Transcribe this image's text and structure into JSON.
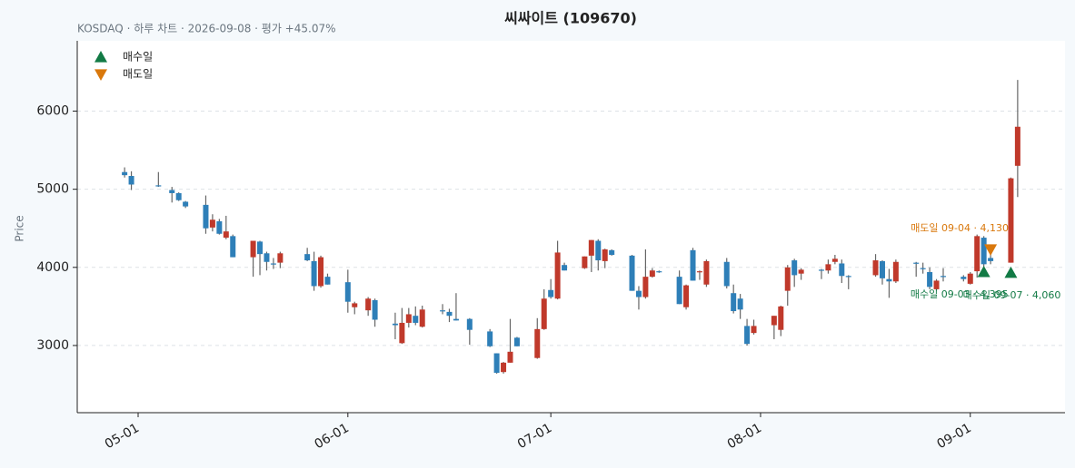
{
  "chart_data": {
    "type": "candlestick",
    "title": "씨싸이트 (109670)",
    "subtitle": "KOSDAQ · 하루 차트 · 2026-09-08 · 평가 +45.07%",
    "y_label": "Price",
    "up_color": "#c0392b",
    "down_color": "#2e7fb8",
    "x": [
      "2026-04-29",
      "2026-04-30",
      "2026-05-04",
      "2026-05-06",
      "2026-05-07",
      "2026-05-08",
      "2026-05-11",
      "2026-05-12",
      "2026-05-13",
      "2026-05-14",
      "2026-05-15",
      "2026-05-18",
      "2026-05-19",
      "2026-05-20",
      "2026-05-21",
      "2026-05-22",
      "2026-05-26",
      "2026-05-27",
      "2026-05-28",
      "2026-05-29",
      "2026-06-01",
      "2026-06-02",
      "2026-06-04",
      "2026-06-05",
      "2026-06-08",
      "2026-06-09",
      "2026-06-10",
      "2026-06-11",
      "2026-06-12",
      "2026-06-15",
      "2026-06-16",
      "2026-06-17",
      "2026-06-19",
      "2026-06-22",
      "2026-06-23",
      "2026-06-24",
      "2026-06-25",
      "2026-06-26",
      "2026-06-29",
      "2026-06-30",
      "2026-07-01",
      "2026-07-02",
      "2026-07-03",
      "2026-07-06",
      "2026-07-07",
      "2026-07-08",
      "2026-07-09",
      "2026-07-10",
      "2026-07-13",
      "2026-07-14",
      "2026-07-15",
      "2026-07-16",
      "2026-07-17",
      "2026-07-20",
      "2026-07-21",
      "2026-07-22",
      "2026-07-23",
      "2026-07-24",
      "2026-07-27",
      "2026-07-28",
      "2026-07-29",
      "2026-07-30",
      "2026-07-31",
      "2026-08-03",
      "2026-08-04",
      "2026-08-05",
      "2026-08-06",
      "2026-08-07",
      "2026-08-10",
      "2026-08-11",
      "2026-08-12",
      "2026-08-13",
      "2026-08-14",
      "2026-08-18",
      "2026-08-19",
      "2026-08-20",
      "2026-08-21",
      "2026-08-24",
      "2026-08-25",
      "2026-08-26",
      "2026-08-27",
      "2026-08-28",
      "2026-08-31",
      "2026-09-01",
      "2026-09-02",
      "2026-09-03",
      "2026-09-04",
      "2026-09-07",
      "2026-09-08"
    ],
    "open": [
      5220,
      5170,
      5050,
      4990,
      4950,
      4840,
      4800,
      4510,
      4590,
      4380,
      4400,
      4130,
      4330,
      4180,
      4050,
      4060,
      4170,
      4080,
      3760,
      3880,
      3810,
      3490,
      3450,
      3580,
      3280,
      3030,
      3290,
      3380,
      3240,
      3450,
      3430,
      3340,
      3340,
      3180,
      2900,
      2660,
      2780,
      3100,
      2840,
      3210,
      3710,
      3600,
      4030,
      3990,
      4150,
      4340,
      4080,
      4220,
      4150,
      3700,
      3620,
      3880,
      3950,
      3880,
      3490,
      4220,
      3940,
      3780,
      4070,
      3670,
      3600,
      3250,
      3160,
      3260,
      3200,
      3700,
      4090,
      3920,
      3970,
      3960,
      4070,
      4050,
      3890,
      3900,
      4080,
      3850,
      3820,
      4060,
      3990,
      3940,
      3720,
      3890,
      3880,
      3790,
      3950,
      4380,
      4120,
      4060,
      5300
    ],
    "high": [
      5280,
      5230,
      5220,
      5030,
      4960,
      4850,
      4920,
      4680,
      4620,
      4660,
      4420,
      4340,
      4340,
      4200,
      4120,
      4200,
      4250,
      4200,
      4150,
      3920,
      3970,
      3560,
      3620,
      3600,
      3420,
      3480,
      3480,
      3500,
      3510,
      3530,
      3470,
      3670,
      3350,
      3210,
      2900,
      2790,
      3340,
      3110,
      3350,
      3720,
      3850,
      4340,
      4060,
      4140,
      4350,
      4360,
      4240,
      4230,
      4160,
      3760,
      4230,
      3990,
      3960,
      3960,
      3780,
      4250,
      3960,
      4100,
      4120,
      3780,
      3660,
      3340,
      3330,
      3380,
      3510,
      4030,
      4110,
      3990,
      3980,
      4100,
      4160,
      4100,
      3900,
      4170,
      4090,
      3980,
      4100,
      4070,
      4060,
      4000,
      3850,
      3990,
      3900,
      3940,
      4420,
      4400,
      4210,
      5150,
      6400
    ],
    "low": [
      5150,
      4990,
      5030,
      4830,
      4850,
      4760,
      4430,
      4460,
      4420,
      4360,
      4130,
      3880,
      3900,
      3960,
      3980,
      3990,
      4080,
      3700,
      3740,
      3780,
      3420,
      3400,
      3380,
      3240,
      3080,
      3020,
      3230,
      3260,
      3230,
      3400,
      3300,
      3320,
      3010,
      2980,
      2640,
      2640,
      2780,
      2990,
      2830,
      3200,
      3600,
      3590,
      3960,
      3980,
      3940,
      3960,
      3990,
      4150,
      3700,
      3460,
      3600,
      3870,
      3930,
      3530,
      3460,
      3830,
      3840,
      3750,
      3730,
      3410,
      3340,
      3000,
      3140,
      3080,
      3120,
      3510,
      3750,
      3840,
      3850,
      3920,
      4040,
      3800,
      3720,
      3880,
      3780,
      3610,
      3800,
      3880,
      3920,
      3720,
      3700,
      3820,
      3820,
      3780,
      3870,
      3970,
      4040,
      4060,
      4900
    ],
    "close": [
      5180,
      5060,
      5040,
      4950,
      4860,
      4780,
      4500,
      4610,
      4430,
      4460,
      4130,
      4340,
      4170,
      4070,
      4040,
      4180,
      4090,
      3760,
      4130,
      3780,
      3560,
      3540,
      3600,
      3330,
      3260,
      3290,
      3400,
      3290,
      3460,
      3440,
      3380,
      3320,
      3200,
      2990,
      2650,
      2780,
      2920,
      2990,
      3210,
      3600,
      3620,
      4190,
      3960,
      4140,
      4350,
      4090,
      4230,
      4160,
      3700,
      3620,
      3880,
      3960,
      3940,
      3530,
      3770,
      3830,
      3950,
      4080,
      3760,
      3440,
      3460,
      3020,
      3250,
      3380,
      3500,
      4000,
      3900,
      3970,
      3960,
      4040,
      4110,
      3890,
      3880,
      4090,
      3860,
      3820,
      4070,
      4050,
      3980,
      3750,
      3830,
      3880,
      3850,
      3920,
      4400,
      4040,
      4080,
      5140,
      5800
    ],
    "markers": [
      {
        "name": "매수일",
        "color": "#127a45",
        "marker": "^",
        "x": [
          "2026-09-03",
          "2026-09-07"
        ],
        "y": [
          3940,
          3930
        ],
        "labels": [
          "매수일 09-03 · 4,395",
          "매수일 09-07 · 4,060"
        ]
      },
      {
        "name": "매도일",
        "color": "#d9780c",
        "marker": "v",
        "x": [
          "2026-09-04"
        ],
        "y": [
          4230
        ],
        "labels": [
          "매도일 09-04 · 4,130"
        ]
      }
    ],
    "xlim": [
      "2026-04-22",
      "2026-09-15"
    ],
    "xticks": [
      {
        "value": "2026-05-01",
        "label": "05-01"
      },
      {
        "value": "2026-06-01",
        "label": "06-01"
      },
      {
        "value": "2026-07-01",
        "label": "07-01"
      },
      {
        "value": "2026-08-01",
        "label": "08-01"
      },
      {
        "value": "2026-09-01",
        "label": "09-01"
      }
    ],
    "ylim": [
      2140,
      6900
    ],
    "yticks": [
      3000,
      4000,
      5000,
      6000
    ],
    "grid": true,
    "legend": "upper left"
  }
}
